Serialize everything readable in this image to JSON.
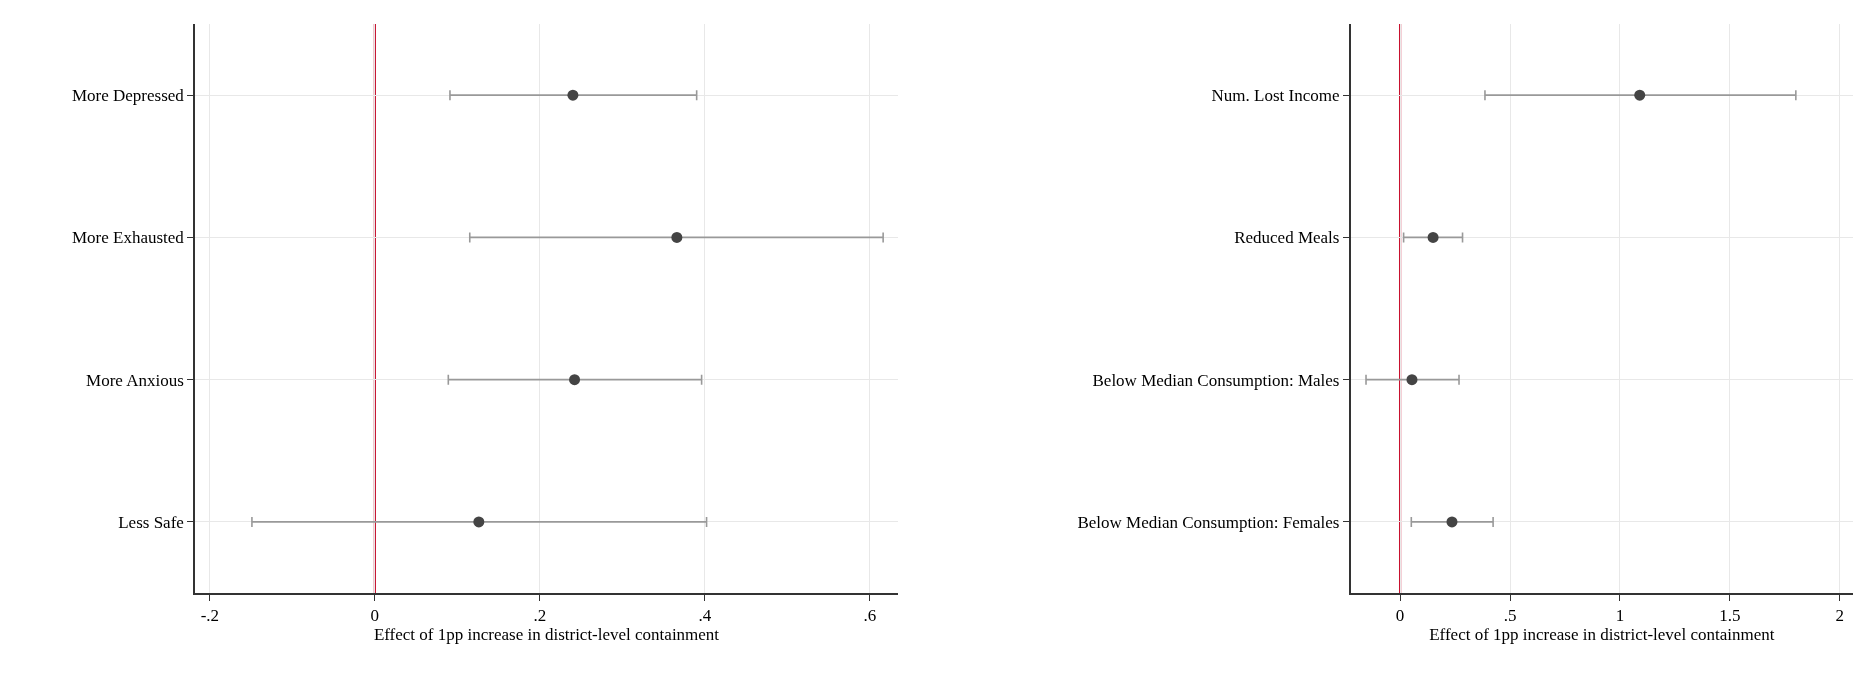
{
  "chart_data": [
    {
      "type": "scatter",
      "orientation": "horizontal",
      "xlabel": "Effect of 1pp increase in district-level containment",
      "categories": [
        "More Depressed",
        "More Exhausted",
        "More Anxious",
        "Less Safe"
      ],
      "series": [
        {
          "color": "#444444",
          "values": [
            0.24,
            0.366,
            0.242,
            0.126
          ],
          "errors": [
            [
              0.091,
              0.39
            ],
            [
              0.115,
              0.616
            ],
            [
              0.089,
              0.396
            ],
            [
              -0.149,
              0.402
            ]
          ]
        }
      ],
      "xlim": [
        -0.218,
        0.634
      ],
      "xticks": [
        {
          "value": -0.2,
          "label": "-.2"
        },
        0,
        {
          "value": 0.2,
          "label": ".2"
        },
        {
          "value": 0.4,
          "label": ".4"
        },
        {
          "value": 0.6,
          "label": ".6"
        }
      ],
      "ref_lines": [
        {
          "axis": "x",
          "value": 0,
          "color": "#c8102e"
        }
      ],
      "grid": true,
      "marker": "circle"
    },
    {
      "type": "scatter",
      "orientation": "horizontal",
      "xlabel": "Effect of 1pp increase in district-level containment",
      "categories": [
        "Num. Lost Income",
        "Reduced Meals",
        "Below Median Consumption: Males",
        "Below Median Consumption: Females"
      ],
      "series": [
        {
          "color": "#444444",
          "values": [
            1.09,
            0.15,
            0.054,
            0.236
          ],
          "errors": [
            [
              0.386,
              1.8
            ],
            [
              0.016,
              0.284
            ],
            [
              -0.155,
              0.268
            ],
            [
              0.051,
              0.423
            ]
          ]
        }
      ],
      "xlim": [
        -0.225,
        2.06
      ],
      "xticks": [
        0,
        {
          "value": 0.5,
          "label": ".5"
        },
        1,
        1.5,
        2
      ],
      "ref_lines": [
        {
          "axis": "x",
          "value": 0,
          "color": "#c8102e"
        }
      ],
      "grid": true,
      "marker": "circle"
    }
  ]
}
